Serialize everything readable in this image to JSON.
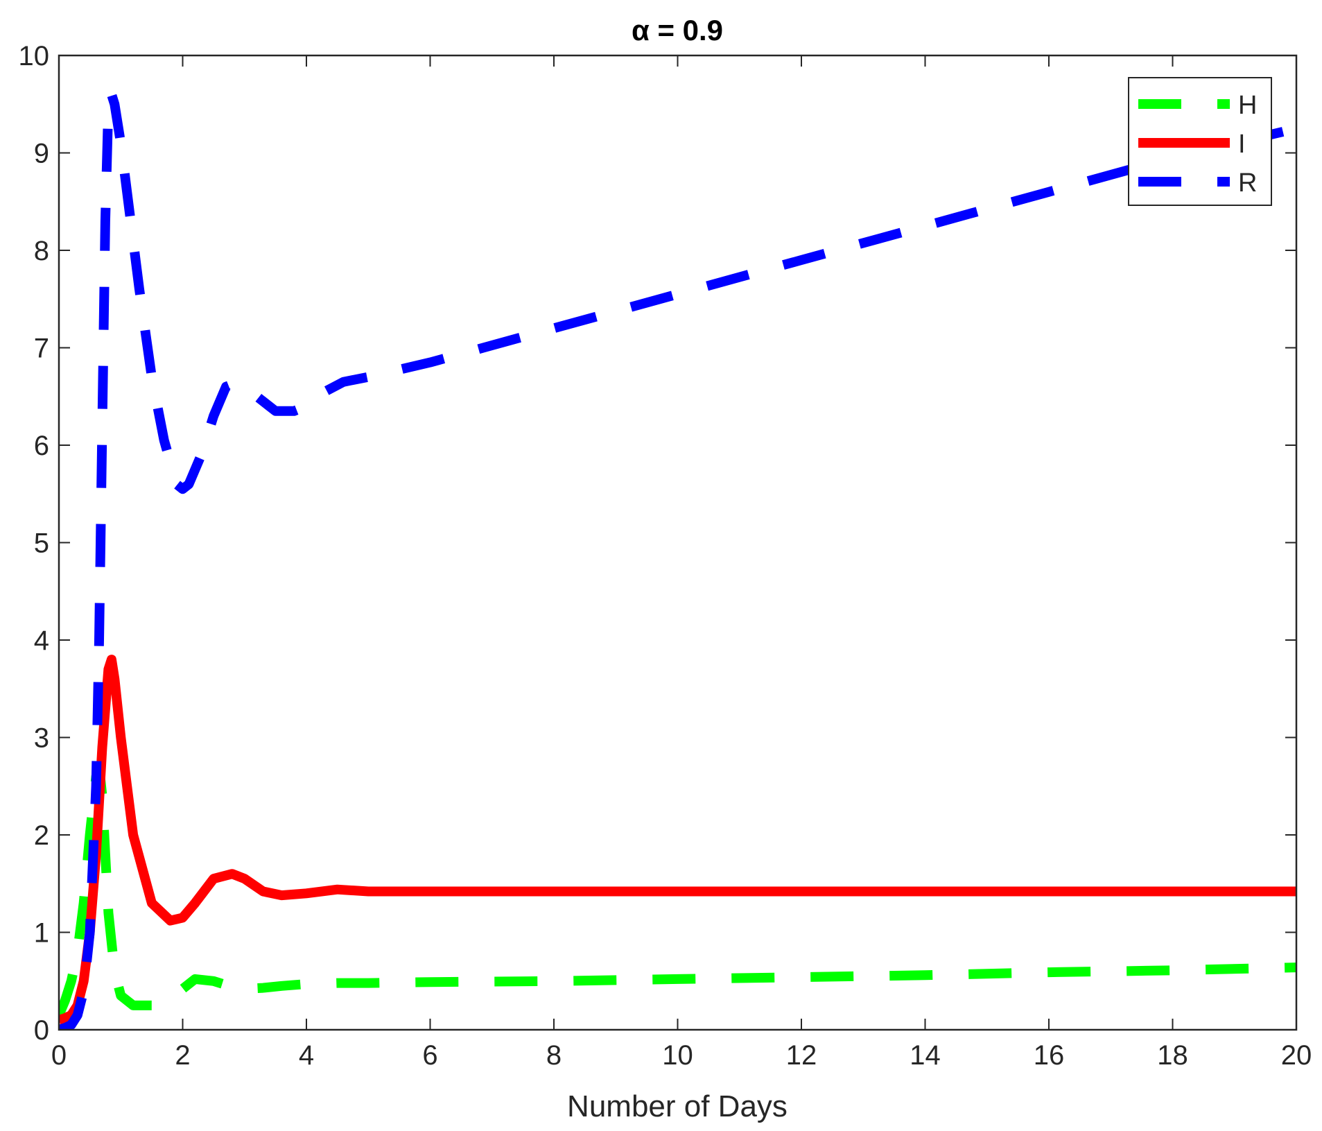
{
  "chart_data": {
    "type": "line",
    "title": "α = 0.9",
    "xlabel": "Number of Days",
    "ylabel": "",
    "xlim": [
      0,
      20
    ],
    "ylim": [
      0,
      10
    ],
    "xticks": [
      0,
      2,
      4,
      6,
      8,
      10,
      12,
      14,
      16,
      18,
      20
    ],
    "yticks": [
      0,
      1,
      2,
      3,
      4,
      5,
      6,
      7,
      8,
      9,
      10
    ],
    "grid": false,
    "legend_position": "top-right",
    "series": [
      {
        "name": "H",
        "color": "#00ff00",
        "style": "dashed",
        "x": [
          0,
          0.1,
          0.2,
          0.3,
          0.4,
          0.5,
          0.6,
          0.65,
          0.7,
          0.75,
          0.8,
          0.9,
          1.0,
          1.2,
          1.5,
          1.8,
          2.0,
          2.2,
          2.5,
          2.8,
          3.0,
          3.3,
          3.6,
          4.0,
          4.5,
          5,
          6,
          8,
          10,
          12,
          14,
          16,
          18,
          20
        ],
        "y": [
          0.15,
          0.3,
          0.5,
          0.8,
          1.3,
          2.0,
          2.6,
          2.7,
          2.4,
          1.8,
          1.2,
          0.6,
          0.35,
          0.25,
          0.25,
          0.32,
          0.42,
          0.52,
          0.5,
          0.44,
          0.42,
          0.43,
          0.45,
          0.47,
          0.48,
          0.48,
          0.49,
          0.5,
          0.52,
          0.54,
          0.56,
          0.59,
          0.61,
          0.64
        ]
      },
      {
        "name": "I",
        "color": "#ff0000",
        "style": "solid",
        "x": [
          0,
          0.1,
          0.2,
          0.3,
          0.4,
          0.5,
          0.6,
          0.7,
          0.8,
          0.85,
          0.9,
          1.0,
          1.2,
          1.5,
          1.8,
          2.0,
          2.2,
          2.5,
          2.8,
          3.0,
          3.3,
          3.6,
          4.0,
          4.5,
          5,
          6,
          8,
          10,
          12,
          14,
          16,
          18,
          20
        ],
        "y": [
          0.1,
          0.12,
          0.15,
          0.25,
          0.5,
          1.0,
          1.8,
          2.9,
          3.7,
          3.8,
          3.6,
          3.0,
          2.0,
          1.3,
          1.12,
          1.15,
          1.3,
          1.55,
          1.6,
          1.55,
          1.42,
          1.38,
          1.4,
          1.44,
          1.42,
          1.42,
          1.42,
          1.42,
          1.42,
          1.42,
          1.42,
          1.42,
          1.42
        ]
      },
      {
        "name": "R",
        "color": "#0000ff",
        "style": "dashed",
        "x": [
          0,
          0.1,
          0.2,
          0.3,
          0.4,
          0.5,
          0.6,
          0.65,
          0.7,
          0.75,
          0.8,
          0.85,
          0.9,
          1.0,
          1.1,
          1.2,
          1.3,
          1.5,
          1.7,
          1.9,
          2.0,
          2.1,
          2.3,
          2.5,
          2.7,
          2.9,
          3.2,
          3.5,
          3.8,
          4.0,
          4.3,
          4.6,
          5,
          6,
          8,
          10,
          12,
          14,
          16,
          18,
          20
        ],
        "y": [
          0.0,
          0.02,
          0.05,
          0.15,
          0.4,
          1.0,
          2.5,
          4.0,
          6.2,
          8.3,
          9.5,
          9.6,
          9.5,
          9.1,
          8.6,
          8.1,
          7.6,
          6.7,
          6.05,
          5.6,
          5.55,
          5.6,
          5.9,
          6.3,
          6.6,
          6.65,
          6.5,
          6.35,
          6.35,
          6.4,
          6.55,
          6.65,
          6.7,
          6.85,
          7.2,
          7.55,
          7.9,
          8.25,
          8.6,
          8.95,
          9.25
        ]
      }
    ]
  }
}
